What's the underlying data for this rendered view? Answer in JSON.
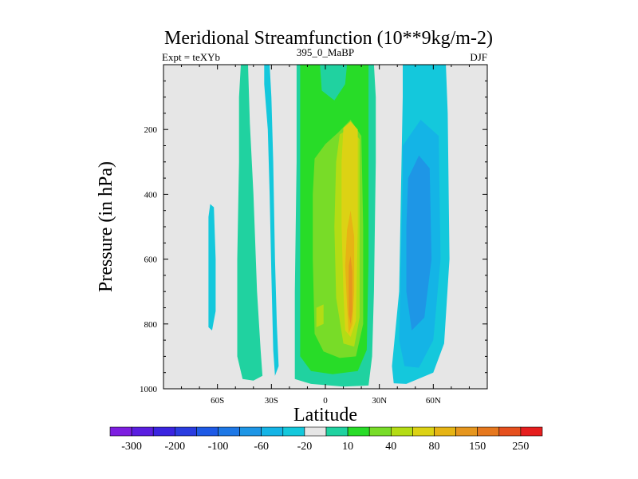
{
  "chart_data": {
    "type": "heatmap",
    "title": "Meridional Streamfunction (10**9kg/m-2)",
    "subtitle_left": "Expt = teXYb",
    "subtitle_center": "395_0_MaBP",
    "subtitle_right": "DJF",
    "xlabel": "Latitude",
    "ylabel": "Pressure (in hPa)",
    "xlim": [
      -90,
      90
    ],
    "ylim": [
      0,
      1000
    ],
    "y_reversed": true,
    "x_ticks": [
      {
        "value": -60,
        "label": "60S"
      },
      {
        "value": -30,
        "label": "30S"
      },
      {
        "value": 0,
        "label": "0"
      },
      {
        "value": 30,
        "label": "30N"
      },
      {
        "value": 60,
        "label": "60N"
      }
    ],
    "y_ticks": [
      {
        "value": 200,
        "label": "200"
      },
      {
        "value": 400,
        "label": "400"
      },
      {
        "value": 600,
        "label": "600"
      },
      {
        "value": 800,
        "label": "800"
      },
      {
        "value": 1000,
        "label": "1000"
      }
    ],
    "background_color": "#e6e6e6",
    "colorbar": {
      "colors": [
        "#7d1ee0",
        "#5a1ee0",
        "#3a24e0",
        "#2a3ce0",
        "#1e5ae6",
        "#1e78e6",
        "#1e96e6",
        "#14b4e6",
        "#14c8dc",
        "#e6e6e6",
        "#20d2a0",
        "#28dc28",
        "#78dc28",
        "#b4dc14",
        "#dcd214",
        "#e6b414",
        "#e6961e",
        "#e6781e",
        "#e6501e",
        "#e61e1e"
      ],
      "labels": [
        "-300",
        "-200",
        "-100",
        "-60",
        "-20",
        "10",
        "40",
        "80",
        "150",
        "250"
      ],
      "label_boundaries": [
        1,
        3,
        5,
        7,
        9,
        11,
        13,
        15,
        17,
        19
      ]
    },
    "regions": [
      {
        "level": 10,
        "color": "#20d2a0",
        "points": [
          [
            -47,
            0
          ],
          [
            -43,
            0
          ],
          [
            -42,
            180
          ],
          [
            -40,
            400
          ],
          [
            -38,
            700
          ],
          [
            -36,
            880
          ],
          [
            -35,
            960
          ],
          [
            -40,
            975
          ],
          [
            -46,
            970
          ],
          [
            -49,
            900
          ],
          [
            -49,
            600
          ],
          [
            -48,
            300
          ],
          [
            -48,
            100
          ]
        ]
      },
      {
        "level": -20,
        "color": "#14c8dc",
        "points": [
          [
            -64,
            430
          ],
          [
            -62,
            440
          ],
          [
            -61,
            600
          ],
          [
            -61,
            760
          ],
          [
            -63,
            820
          ],
          [
            -65,
            810
          ],
          [
            -65,
            600
          ],
          [
            -65,
            470
          ]
        ]
      },
      {
        "level": -20,
        "color": "#14c8dc",
        "points": [
          [
            -34,
            0
          ],
          [
            -31,
            0
          ],
          [
            -30,
            100
          ],
          [
            -29,
            300
          ],
          [
            -28,
            600
          ],
          [
            -27,
            800
          ],
          [
            -26,
            930
          ],
          [
            -28,
            960
          ],
          [
            -29,
            880
          ],
          [
            -30,
            650
          ],
          [
            -31,
            400
          ],
          [
            -32,
            200
          ],
          [
            -34,
            60
          ]
        ]
      },
      {
        "level": 10,
        "color": "#20d2a0",
        "points": [
          [
            -16,
            0
          ],
          [
            27,
            0
          ],
          [
            28,
            100
          ],
          [
            28,
            300
          ],
          [
            27,
            700
          ],
          [
            26,
            900
          ],
          [
            24,
            990
          ],
          [
            10,
            993
          ],
          [
            -8,
            985
          ],
          [
            -17,
            970
          ],
          [
            -17,
            700
          ],
          [
            -16,
            300
          ]
        ]
      },
      {
        "level": 40,
        "color": "#28dc28",
        "points": [
          [
            -14,
            0
          ],
          [
            -3,
            0
          ],
          [
            -2,
            80
          ],
          [
            5,
            110
          ],
          [
            11,
            60
          ],
          [
            12,
            0
          ],
          [
            24,
            0
          ],
          [
            24,
            200
          ],
          [
            24,
            600
          ],
          [
            23,
            880
          ],
          [
            18,
            945
          ],
          [
            4,
            955
          ],
          [
            -8,
            945
          ],
          [
            -14,
            900
          ],
          [
            -14,
            600
          ],
          [
            -14,
            250
          ]
        ]
      },
      {
        "level": 80,
        "color": "#78dc28",
        "points": [
          [
            -6,
            290
          ],
          [
            0,
            245
          ],
          [
            7,
            210
          ],
          [
            14,
            170
          ],
          [
            20,
            220
          ],
          [
            21,
            500
          ],
          [
            21,
            800
          ],
          [
            17,
            900
          ],
          [
            8,
            905
          ],
          [
            -1,
            885
          ],
          [
            -6,
            830
          ],
          [
            -7,
            600
          ],
          [
            -7,
            400
          ]
        ]
      },
      {
        "level": 150,
        "color": "#b4dc14",
        "points": [
          [
            8,
            215
          ],
          [
            14,
            195
          ],
          [
            19,
            230
          ],
          [
            19,
            500
          ],
          [
            19,
            780
          ],
          [
            16,
            870
          ],
          [
            10,
            860
          ],
          [
            6,
            720
          ],
          [
            5,
            500
          ],
          [
            6,
            300
          ]
        ]
      },
      {
        "level": 150,
        "color": "#b4dc14",
        "points": [
          [
            -5,
            750
          ],
          [
            -1,
            740
          ],
          [
            -1,
            800
          ],
          [
            -5,
            810
          ]
        ]
      },
      {
        "level": 250,
        "color": "#dcd214",
        "points": [
          [
            10,
            195
          ],
          [
            14,
            175
          ],
          [
            18,
            200
          ],
          [
            18,
            500
          ],
          [
            17,
            790
          ],
          [
            14,
            840
          ],
          [
            11,
            820
          ],
          [
            10,
            700
          ],
          [
            9,
            500
          ],
          [
            9,
            300
          ]
        ]
      },
      {
        "level": 300,
        "color": "#e6b414",
        "points": [
          [
            12,
            510
          ],
          [
            14,
            450
          ],
          [
            16,
            530
          ],
          [
            16,
            700
          ],
          [
            15,
            800
          ],
          [
            13,
            830
          ],
          [
            12,
            740
          ],
          [
            11,
            620
          ]
        ]
      },
      {
        "level": 400,
        "color": "#e6961e",
        "points": [
          [
            13,
            620
          ],
          [
            14,
            590
          ],
          [
            15,
            640
          ],
          [
            15,
            760
          ],
          [
            14,
            800
          ],
          [
            13,
            770
          ]
        ]
      },
      {
        "level": -20,
        "color": "#14c8dc",
        "points": [
          [
            43,
            0
          ],
          [
            67,
            0
          ],
          [
            68,
            150
          ],
          [
            69,
            600
          ],
          [
            66,
            860
          ],
          [
            60,
            950
          ],
          [
            45,
            985
          ],
          [
            38,
            983
          ],
          [
            37,
            930
          ],
          [
            41,
            700
          ],
          [
            42,
            400
          ],
          [
            43,
            100
          ]
        ]
      },
      {
        "level": -60,
        "color": "#14b4e6",
        "points": [
          [
            43,
            250
          ],
          [
            53,
            170
          ],
          [
            63,
            220
          ],
          [
            64,
            600
          ],
          [
            60,
            850
          ],
          [
            52,
            935
          ],
          [
            44,
            930
          ],
          [
            41,
            850
          ],
          [
            42,
            600
          ],
          [
            43,
            350
          ]
        ]
      },
      {
        "level": -100,
        "color": "#1e96e6",
        "points": [
          [
            46,
            350
          ],
          [
            52,
            280
          ],
          [
            58,
            320
          ],
          [
            59,
            600
          ],
          [
            55,
            780
          ],
          [
            48,
            820
          ],
          [
            45,
            700
          ],
          [
            45,
            500
          ]
        ]
      }
    ]
  }
}
